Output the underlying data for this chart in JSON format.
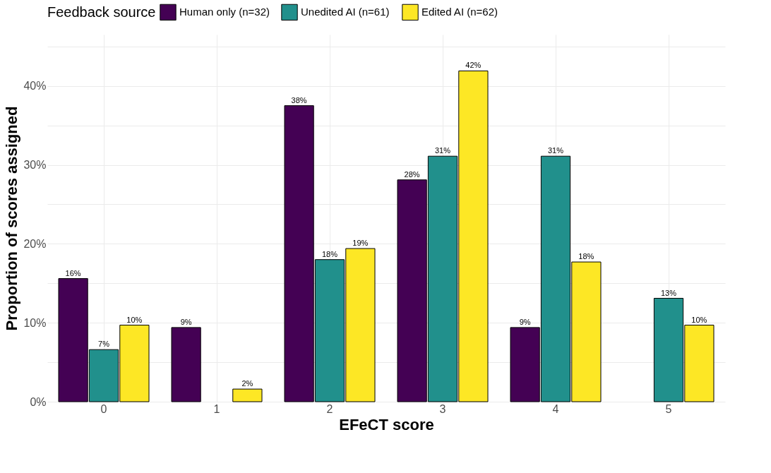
{
  "chart_data": {
    "type": "bar",
    "xlabel": "EFeCT score",
    "ylabel": "Proportion of scores assigned",
    "legend_title": "Feedback source",
    "categories": [
      "0",
      "1",
      "2",
      "3",
      "4",
      "5"
    ],
    "series": [
      {
        "name": "Human only (n=32)",
        "color": "#440154",
        "values": [
          15.6,
          9.4,
          37.5,
          28.1,
          9.4,
          null
        ],
        "value_labels": [
          "16%",
          "9%",
          "38%",
          "28%",
          "9%",
          null
        ]
      },
      {
        "name": "Unedited AI (n=61)",
        "color": "#21908c",
        "values": [
          6.6,
          null,
          18.0,
          31.1,
          31.1,
          13.1
        ],
        "value_labels": [
          "7%",
          null,
          "18%",
          "31%",
          "31%",
          "13%"
        ]
      },
      {
        "name": "Edited AI (n=62)",
        "color": "#fde725",
        "values": [
          9.7,
          1.6,
          19.4,
          41.9,
          17.7,
          9.7
        ],
        "value_labels": [
          "10%",
          "2%",
          "19%",
          "42%",
          "18%",
          "10%"
        ]
      }
    ],
    "ylim": [
      0,
      46.5
    ],
    "yticks": [
      {
        "value": 0,
        "label": "0%"
      },
      {
        "value": 5,
        "label": null
      },
      {
        "value": 10,
        "label": "10%"
      },
      {
        "value": 15,
        "label": null
      },
      {
        "value": 20,
        "label": "20%"
      },
      {
        "value": 25,
        "label": null
      },
      {
        "value": 30,
        "label": "30%"
      },
      {
        "value": 35,
        "label": null
      },
      {
        "value": 40,
        "label": "40%"
      },
      {
        "value": 45,
        "label": null
      }
    ],
    "grid": true,
    "legend": "top"
  }
}
